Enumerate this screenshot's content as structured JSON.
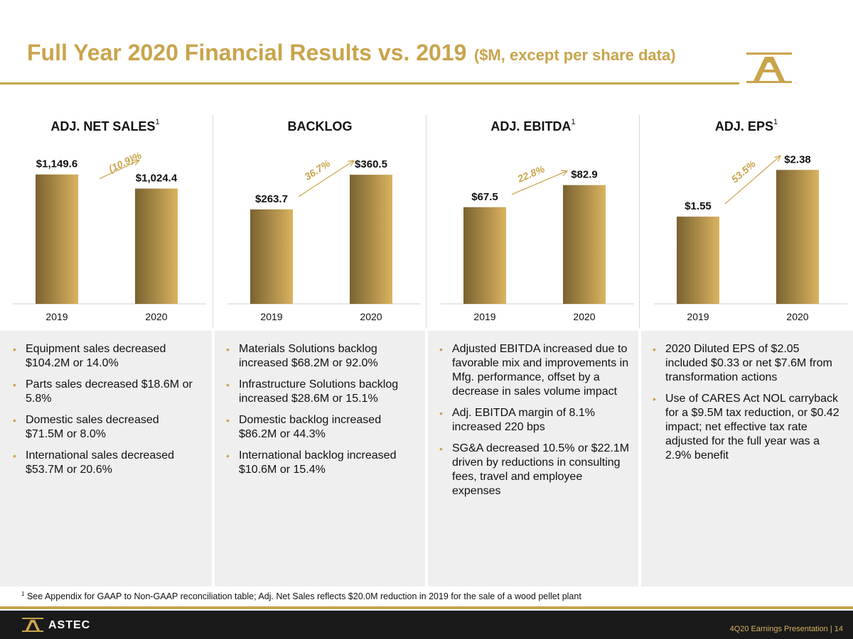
{
  "header": {
    "title": "Full Year 2020 Financial Results vs. 2019",
    "subtitle": "($M, except per share data)"
  },
  "colors": {
    "accent": "#c9a44c",
    "bar_light": "#d9b35f",
    "bar_dark": "#7a6231",
    "footer_bg": "#1a1a1a"
  },
  "chart_data": [
    {
      "type": "bar",
      "title": "ADJ. NET SALES",
      "title_sup": "1",
      "categories": [
        "2019",
        "2020"
      ],
      "values": [
        1149.6,
        1024.4
      ],
      "value_labels": [
        "$1,149.6",
        "$1,024.4"
      ],
      "change_label": "(10.9)%",
      "change_direction": "down",
      "ylim": [
        0,
        1400
      ]
    },
    {
      "type": "bar",
      "title": "BACKLOG",
      "title_sup": "",
      "categories": [
        "2019",
        "2020"
      ],
      "values": [
        263.7,
        360.5
      ],
      "value_labels": [
        "$263.7",
        "$360.5"
      ],
      "change_label": "36.7%",
      "change_direction": "up",
      "ylim": [
        0,
        440
      ]
    },
    {
      "type": "bar",
      "title": "ADJ. EBITDA",
      "title_sup": "1",
      "categories": [
        "2019",
        "2020"
      ],
      "values": [
        67.5,
        82.9
      ],
      "value_labels": [
        "$67.5",
        "$82.9"
      ],
      "change_label": "22.8%",
      "change_direction": "up",
      "ylim": [
        0,
        110
      ]
    },
    {
      "type": "bar",
      "title": "ADJ. EPS",
      "title_sup": "1",
      "categories": [
        "2019",
        "2020"
      ],
      "values": [
        1.55,
        2.38
      ],
      "value_labels": [
        "$1.55",
        "$2.38"
      ],
      "change_label": "53.5%",
      "change_direction": "up",
      "ylim": [
        0,
        2.8
      ]
    }
  ],
  "notes": [
    {
      "items": [
        "Equipment sales decreased $104.2M or 14.0%",
        "Parts sales decreased $18.6M or 5.8%",
        "Domestic sales decreased $71.5M or 8.0%",
        "International sales decreased $53.7M or 20.6%"
      ]
    },
    {
      "items": [
        "Materials Solutions backlog increased $68.2M or 92.0%",
        "Infrastructure Solutions backlog increased $28.6M or 15.1%",
        "Domestic backlog increased $86.2M or 44.3%",
        "International backlog increased $10.6M or 15.4%"
      ]
    },
    {
      "items": [
        "Adjusted EBITDA increased due to favorable mix and improvements in Mfg. performance, offset by a decrease in sales volume impact",
        "Adj. EBITDA margin of 8.1% increased 220 bps",
        "SG&A decreased 10.5% or $22.1M driven by reductions in consulting fees, travel and employee expenses"
      ]
    },
    {
      "items": [
        "2020 Diluted EPS of $2.05 included $0.33 or net $7.6M from transformation actions",
        "Use of CARES Act NOL carryback for a $9.5M tax reduction, or $0.42 impact; net effective tax rate adjusted for the full year was a 2.9% benefit"
      ]
    }
  ],
  "footnote": {
    "marker": "1",
    "text": "See Appendix for GAAP to Non-GAAP reconciliation table; Adj. Net Sales reflects $20.0M reduction in 2019 for the sale of a wood pellet plant"
  },
  "footer": {
    "brand": "ASTEC",
    "presentation": "4Q20 Earnings Presentation |  14",
    "logo_icon": "astec-logo-icon"
  }
}
